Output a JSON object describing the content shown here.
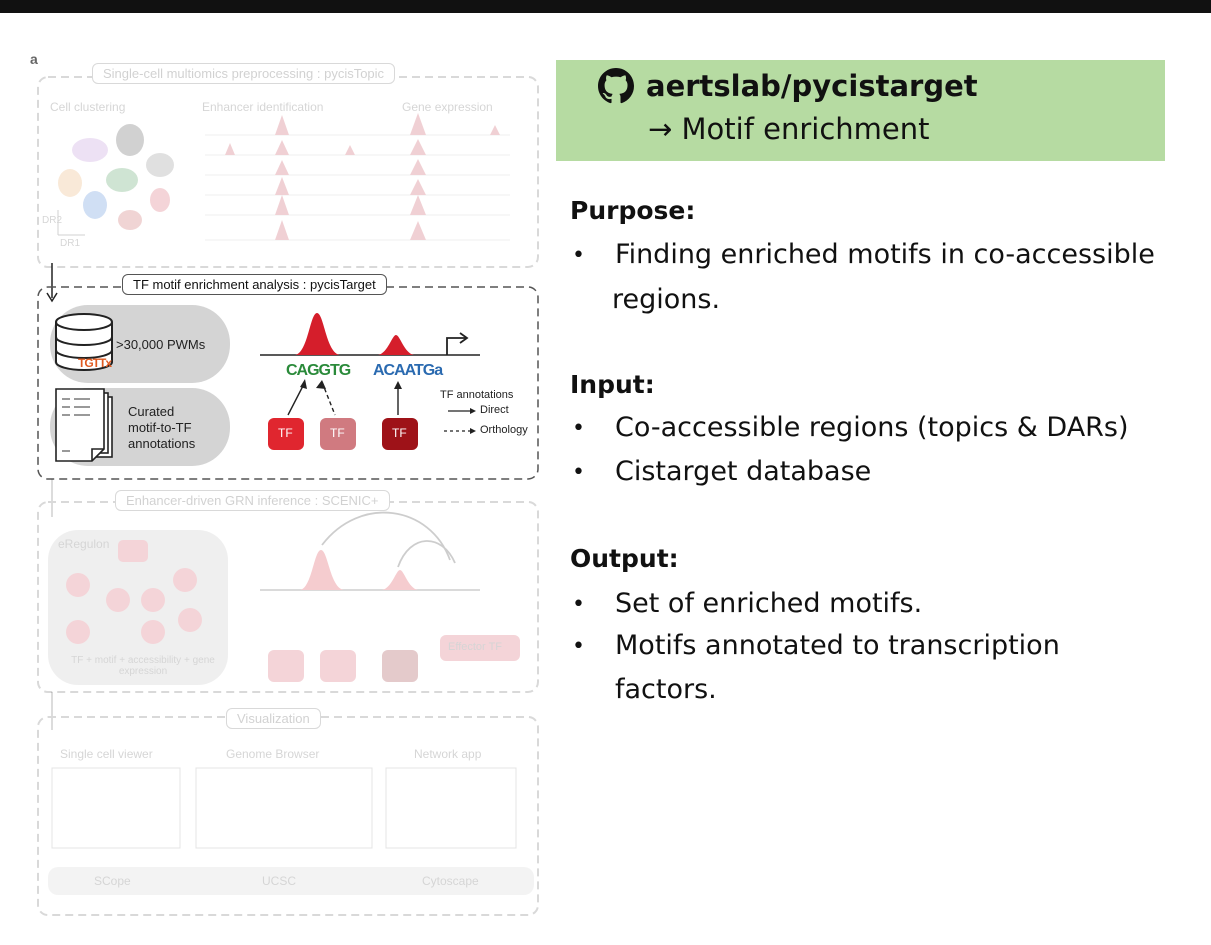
{
  "diagram": {
    "panel_letter": "a",
    "panel1": {
      "title": "Single-cell multiomics preprocessing : pycisTopic",
      "col1": "Cell clustering",
      "col2": "Enhancer identification",
      "col3": "Gene expression",
      "axis_y": "DR2",
      "axis_x": "DR1"
    },
    "panel2": {
      "title": "TF motif enrichment analysis : pycisTarget",
      "pwm_label": ">30,000 PWMs",
      "logo_small": "TGTTx",
      "curated_line1": "Curated",
      "curated_line2": "motif-to-TF",
      "curated_line3": "annotations",
      "motif1": "CAGGTG",
      "motif2": "ACAATGa",
      "tf_annotations": "TF annotations",
      "direct": "Direct",
      "orthology": "Orthology",
      "tf": "TF"
    },
    "panel3": {
      "title": "Enhancer-driven GRN inference : SCENIC+",
      "eregulon": "eRegulon",
      "caption": "TF + motif + accessibility + gene expression",
      "effector": "Effector TF"
    },
    "panel4": {
      "title": "Visualization",
      "col1": "Single cell viewer",
      "col2": "Genome Browser",
      "col3": "Network app",
      "tool1": "SCope",
      "tool2": "UCSC",
      "tool3": "Cytoscape"
    }
  },
  "banner": {
    "repo": "aertslab/pycistarget",
    "subtitle": "→ Motif enrichment",
    "icon": "github-icon",
    "color": "#b6dba2"
  },
  "purpose": {
    "title": "Purpose:",
    "items": [
      "Finding enriched motifs in co-accessible",
      "regions."
    ]
  },
  "input": {
    "title": "Input:",
    "items": [
      "Co-accessible regions (topics & DARs)",
      "Cistarget database"
    ]
  },
  "output": {
    "title": "Output:",
    "items": [
      "Set of enriched motifs.",
      "Motifs annotated to transcription",
      "factors."
    ]
  }
}
